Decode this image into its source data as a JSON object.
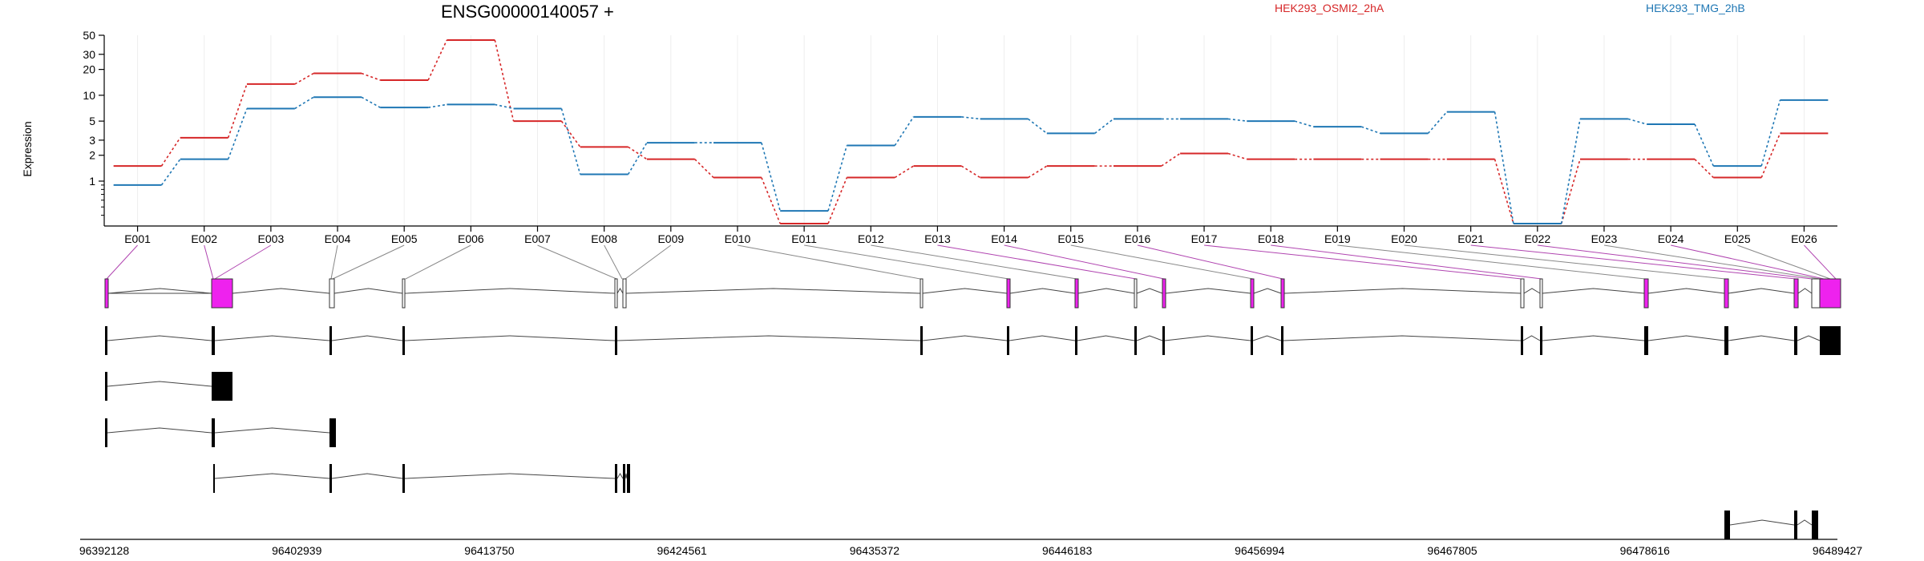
{
  "title": "ENSG00000140057 +",
  "ylabel": "Expression",
  "chart_data": {
    "type": "line",
    "title": "ENSG00000140057 +",
    "ylabel": "Expression",
    "yscale": "log",
    "ylim": [
      0.3,
      50
    ],
    "yticks": [
      "1",
      "2",
      "3",
      "5",
      "10",
      "20",
      "30",
      "50"
    ],
    "xlabel": "",
    "categories": [
      "E001",
      "E002",
      "E003",
      "E004",
      "E005",
      "E006",
      "E007",
      "E008",
      "E009",
      "E010",
      "E011",
      "E012",
      "E013",
      "E014",
      "E015",
      "E016",
      "E017",
      "E018",
      "E019",
      "E020",
      "E021",
      "E022",
      "E023",
      "E024",
      "E025",
      "E026"
    ],
    "series": [
      {
        "name": "HEK293_OSMI2_2hA",
        "color": "#d62728",
        "values": [
          1.5,
          3.2,
          13.5,
          18,
          15,
          44,
          5,
          2.5,
          1.8,
          1.1,
          0.32,
          1.1,
          1.5,
          1.1,
          1.5,
          1.5,
          2.1,
          1.8,
          1.8,
          1.8,
          1.8,
          0.32,
          1.8,
          1.8,
          1.1,
          3.6
        ]
      },
      {
        "name": "HEK293_TMG_2hB",
        "color": "#1f77b4",
        "values": [
          0.9,
          1.8,
          7,
          9.5,
          7.2,
          7.8,
          7,
          1.2,
          2.8,
          2.8,
          0.45,
          2.6,
          5.6,
          5.3,
          3.6,
          5.3,
          5.3,
          5,
          4.3,
          3.6,
          6.4,
          0.32,
          5.3,
          4.6,
          1.5,
          8.8
        ]
      }
    ],
    "x_genomic_ticks": [
      "96392128",
      "96402939",
      "96413750",
      "96424561",
      "96435372",
      "96446183",
      "96456994",
      "96467805",
      "96478616",
      "96489427"
    ]
  },
  "colors": {
    "series_a": "#d62728",
    "series_b": "#1f77b4",
    "exon_highlight": "#ee22ee",
    "exon_plain": "#ffffff",
    "transcript": "#000000"
  }
}
